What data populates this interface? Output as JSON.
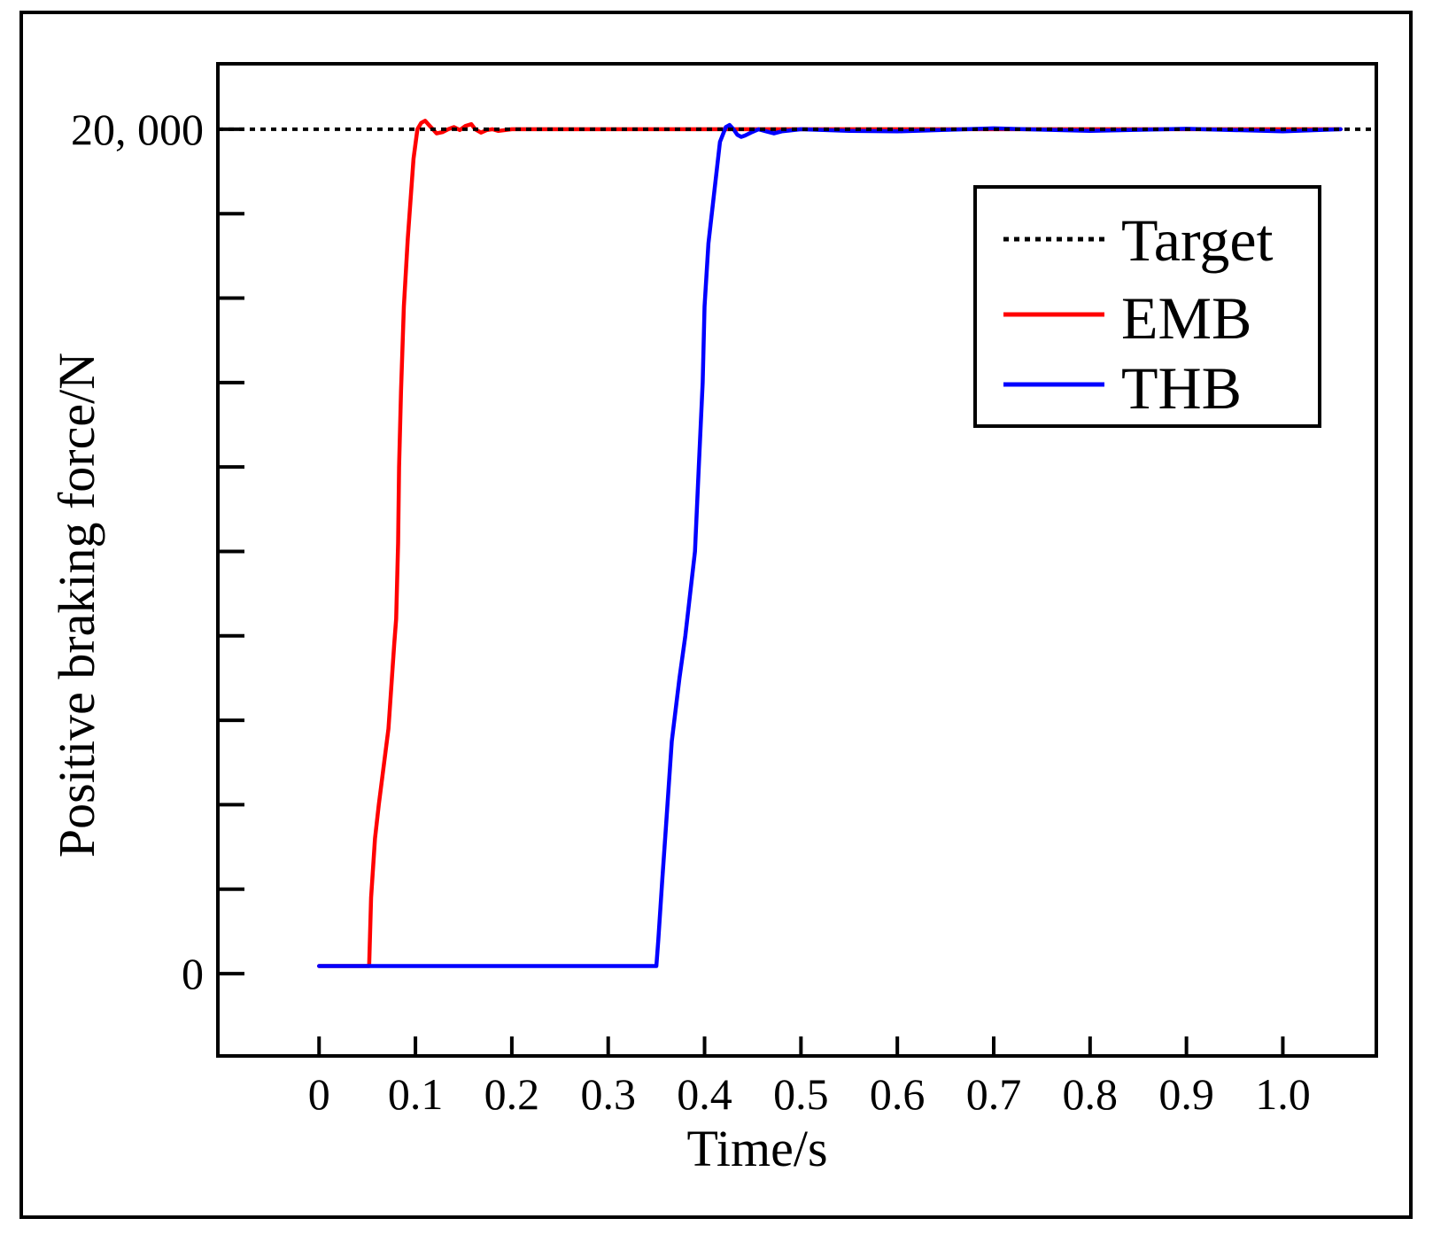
{
  "chart_data": {
    "type": "line",
    "xlabel": "Time/s",
    "ylabel": "Positive braking force/N",
    "xlim": [
      -0.105,
      1.097
    ],
    "ylim": [
      -1950,
      21550
    ],
    "x_ticks": [
      0,
      0.1,
      0.2,
      0.3,
      0.4,
      0.5,
      0.6,
      0.7,
      0.8,
      0.9,
      1.0
    ],
    "x_tick_labels": [
      "0",
      "0.1",
      "0.2",
      "0.3",
      "0.4",
      "0.5",
      "0.6",
      "0.7",
      "0.8",
      "0.9",
      "1.0"
    ],
    "y_ticks": [
      0,
      2000,
      4000,
      6000,
      8000,
      10000,
      12000,
      14000,
      16000,
      18000,
      20000
    ],
    "y_tick_labels": [
      "0",
      "",
      "",
      "",
      "",
      "",
      "",
      "",
      "",
      "",
      "20, 000"
    ],
    "grid": false,
    "legend_position": "top-right",
    "series": [
      {
        "name": "Target",
        "color": "#000000",
        "style": "dotted",
        "x": [
          -0.105,
          1.097
        ],
        "y": [
          20000,
          20000
        ]
      },
      {
        "name": "EMB",
        "color": "#ff0000",
        "style": "solid",
        "x": [
          0,
          0.052,
          0.054,
          0.058,
          0.062,
          0.072,
          0.078,
          0.08,
          0.082,
          0.083,
          0.085,
          0.088,
          0.092,
          0.098,
          0.102,
          0.106,
          0.11,
          0.114,
          0.118,
          0.122,
          0.128,
          0.134,
          0.14,
          0.146,
          0.152,
          0.158,
          0.162,
          0.168,
          0.174,
          0.18,
          0.186,
          0.2,
          0.25,
          0.3,
          0.4,
          0.6,
          0.8,
          1.0,
          1.06
        ],
        "y": [
          180,
          180,
          1800,
          3200,
          4000,
          5800,
          7800,
          8400,
          10200,
          12000,
          13800,
          15800,
          17400,
          19300,
          20000,
          20150,
          20200,
          20100,
          20000,
          19900,
          19930,
          20000,
          20050,
          19980,
          20080,
          20120,
          20000,
          19920,
          19980,
          20000,
          19960,
          20000,
          20000,
          20000,
          20000,
          20000,
          20000,
          20000,
          20000
        ]
      },
      {
        "name": "THB",
        "color": "#0000ff",
        "style": "solid",
        "x": [
          0,
          0.35,
          0.352,
          0.356,
          0.36,
          0.366,
          0.374,
          0.38,
          0.39,
          0.394,
          0.396,
          0.398,
          0.4,
          0.404,
          0.41,
          0.416,
          0.422,
          0.426,
          0.43,
          0.434,
          0.438,
          0.442,
          0.448,
          0.456,
          0.464,
          0.472,
          0.48,
          0.5,
          0.55,
          0.6,
          0.7,
          0.8,
          0.9,
          1.0,
          1.06
        ],
        "y": [
          180,
          180,
          800,
          2200,
          3500,
          5500,
          7000,
          8000,
          10000,
          12000,
          13000,
          14000,
          15800,
          17300,
          18500,
          19700,
          20050,
          20100,
          20000,
          19870,
          19820,
          19850,
          19920,
          20000,
          19950,
          19900,
          19950,
          20000,
          19960,
          19950,
          20020,
          19960,
          20010,
          19950,
          20000
        ]
      }
    ]
  }
}
